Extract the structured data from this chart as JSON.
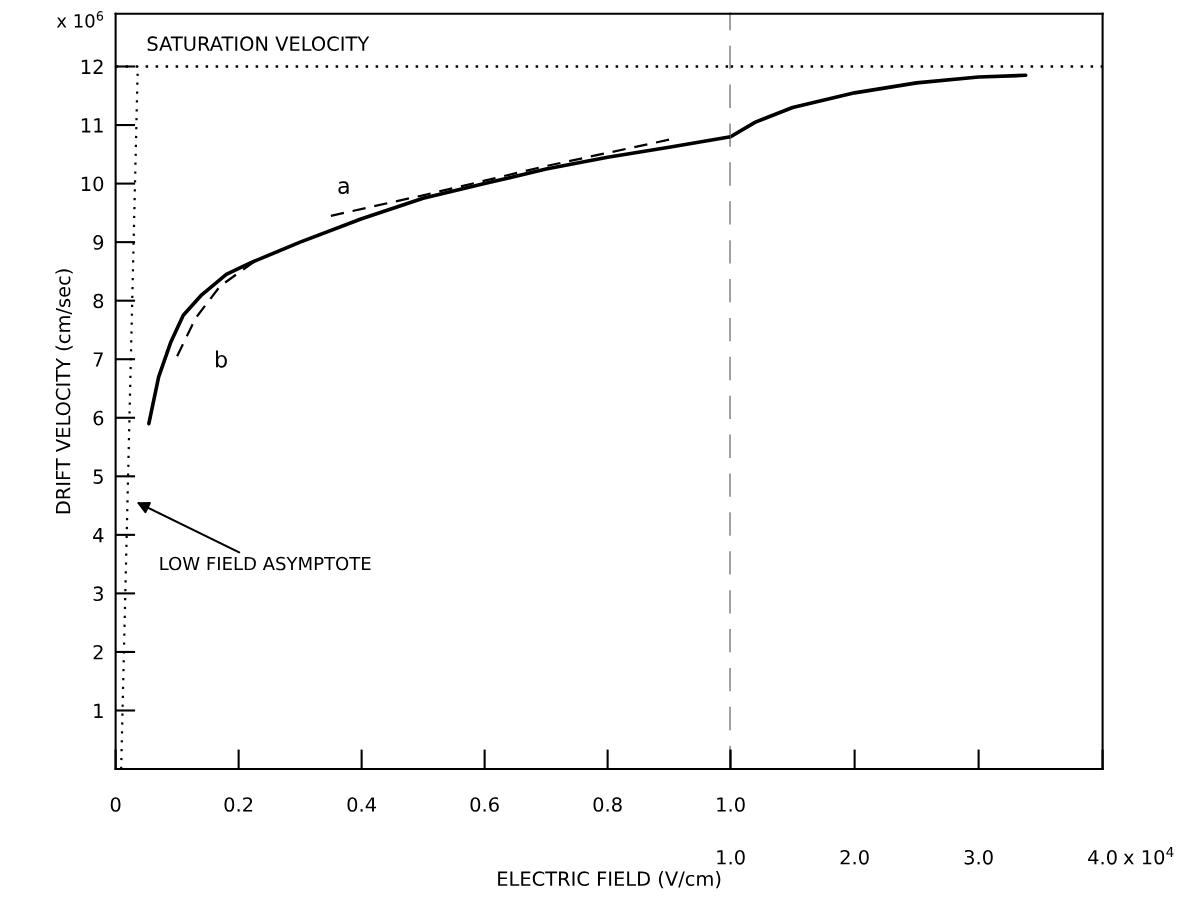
{
  "chart_data": [
    {
      "type": "line",
      "xlabel": "ELECTRIC FIELD (V/cm)",
      "ylabel": "DRIFT VELOCITY (cm/sec)",
      "xlim": [
        0,
        1.0
      ],
      "xticks": [
        0,
        0.2,
        0.4,
        0.6,
        0.8,
        {
          "value": 1.0,
          "label": "1.0"
        }
      ],
      "ylim": [
        0,
        12.9
      ],
      "yticks": [
        1,
        2,
        3,
        4,
        5,
        6,
        7,
        8,
        9,
        10,
        11,
        12
      ],
      "grid": false,
      "legend": false,
      "marker": "none",
      "series": [
        {
          "color": "#000000",
          "line_style": "solid",
          "x": [
            0.054,
            0.07,
            0.09,
            0.11,
            0.14,
            0.18,
            0.22,
            0.3,
            0.4,
            0.5,
            0.6,
            0.7,
            0.8,
            0.9,
            1.0
          ],
          "values": [
            5.9,
            6.7,
            7.3,
            7.75,
            8.1,
            8.45,
            8.65,
            9.0,
            9.4,
            9.75,
            10.0,
            10.25,
            10.45,
            10.62,
            10.8
          ]
        },
        {
          "color": "#000000",
          "line_style": "dashed",
          "x": [
            0.35,
            0.5,
            0.7,
            0.9
          ],
          "values": [
            9.45,
            9.8,
            10.3,
            10.75
          ]
        },
        {
          "color": "#000000",
          "line_style": "dashed",
          "x": [
            0.1,
            0.13,
            0.17,
            0.23
          ],
          "values": [
            7.05,
            7.7,
            8.25,
            8.7
          ]
        },
        {
          "color": "#000000",
          "line_style": "dotted",
          "x": [
            0.009,
            0.036
          ],
          "values": [
            0,
            12
          ]
        }
      ],
      "ref_lines": [
        {
          "axis": "y",
          "value": 12,
          "label": "SATURATION VELOCITY",
          "line_style": "dotted",
          "color": "#000000"
        },
        {
          "axis": "x",
          "value": 1.0,
          "label": null,
          "line_style": "dashed",
          "color": "#000000"
        }
      ],
      "annotations": [
        "a",
        "b",
        "LOW FIELD ASYMPTOTE",
        "x 10$^{6}$"
      ]
    },
    {
      "type": "line",
      "xlim": [
        1.0,
        4.0
      ],
      "xticks": [
        {
          "value": 1.0,
          "label": "1.0"
        },
        {
          "value": 2.0,
          "label": "2.0"
        },
        {
          "value": 3.0,
          "label": "3.0"
        },
        {
          "value": 4.0,
          "label": "4.0"
        }
      ],
      "ylim": [
        0,
        12.9
      ],
      "annotations": [
        "x 10$^{4}$"
      ],
      "tick_labels": "x",
      "grid": false,
      "legend": false,
      "marker": "none",
      "series": [
        {
          "color": "#000000",
          "line_style": "solid",
          "x": [
            1.0,
            1.2,
            1.5,
            2.0,
            2.5,
            3.0,
            3.38
          ],
          "values": [
            10.8,
            11.05,
            11.3,
            11.55,
            11.72,
            11.82,
            11.85
          ]
        }
      ],
      "ref_lines": [
        {
          "axis": "y",
          "value": 12,
          "label": null,
          "line_style": "dotted",
          "color": "#000000"
        }
      ]
    }
  ]
}
